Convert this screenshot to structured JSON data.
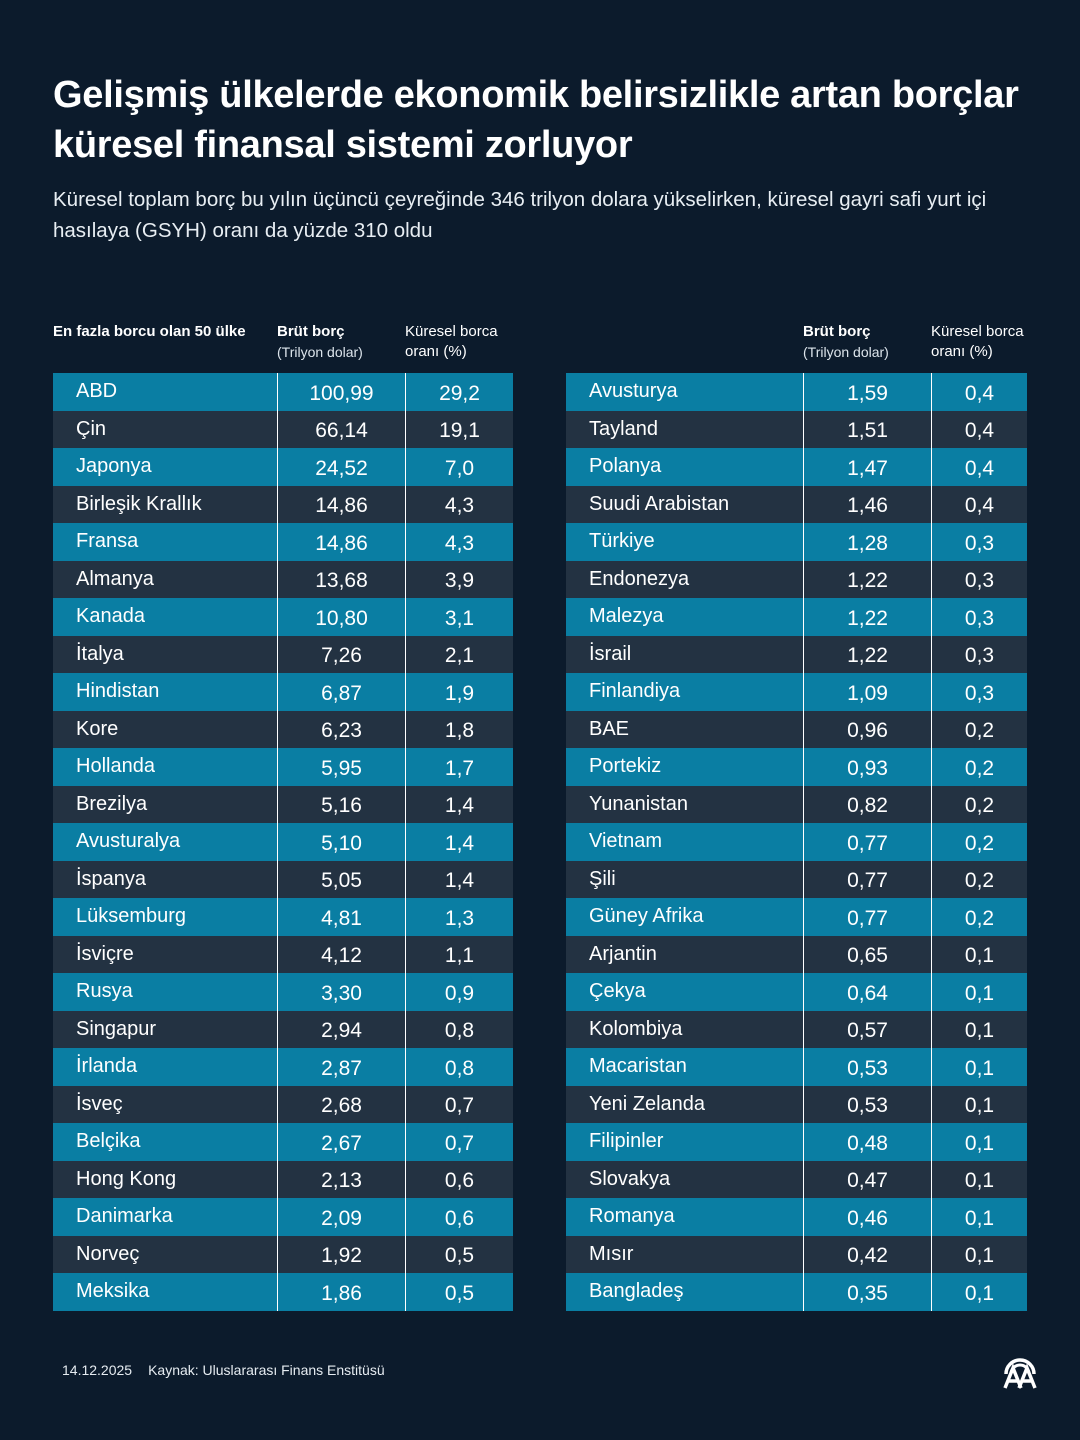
{
  "title": "Gelişmiş ülkelerde ekonomik belirsizlikle artan borçlar küresel finansal sistemi zorluyor",
  "subtitle": "Küresel toplam borç bu yılın üçüncü çeyreğinde 346 trilyon dolara yükselirken, küresel gayri safi yurt içi hasılaya (GSYH) oranı da yüzde 310 oldu",
  "headers": {
    "country": "En fazla borcu olan 50 ülke",
    "debt": "Brüt borç",
    "debt_unit": "(Trilyon dolar)",
    "share": "Küresel borca oranı (%)"
  },
  "colors": {
    "background": "#0c1b2c",
    "row_blue": "#0a7ea3",
    "row_dark": "#233242"
  },
  "chart_data": {
    "type": "table",
    "columns": [
      "Ülke",
      "Brüt borç (Trilyon dolar)",
      "Küresel borca oranı (%)"
    ],
    "rows": [
      [
        "ABD",
        "100,99",
        "29,2"
      ],
      [
        "Çin",
        "66,14",
        "19,1"
      ],
      [
        "Japonya",
        "24,52",
        "7,0"
      ],
      [
        "Birleşik Krallık",
        "14,86",
        "4,3"
      ],
      [
        "Fransa",
        "14,86",
        "4,3"
      ],
      [
        "Almanya",
        "13,68",
        "3,9"
      ],
      [
        "Kanada",
        "10,80",
        "3,1"
      ],
      [
        "İtalya",
        "7,26",
        "2,1"
      ],
      [
        "Hindistan",
        "6,87",
        "1,9"
      ],
      [
        "Kore",
        "6,23",
        "1,8"
      ],
      [
        "Hollanda",
        "5,95",
        "1,7"
      ],
      [
        "Brezilya",
        "5,16",
        "1,4"
      ],
      [
        "Avusturalya",
        "5,10",
        "1,4"
      ],
      [
        "İspanya",
        "5,05",
        "1,4"
      ],
      [
        "Lüksemburg",
        "4,81",
        "1,3"
      ],
      [
        "İsviçre",
        "4,12",
        "1,1"
      ],
      [
        "Rusya",
        "3,30",
        "0,9"
      ],
      [
        "Singapur",
        "2,94",
        "0,8"
      ],
      [
        "İrlanda",
        "2,87",
        "0,8"
      ],
      [
        "İsveç",
        "2,68",
        "0,7"
      ],
      [
        "Belçika",
        "2,67",
        "0,7"
      ],
      [
        "Hong Kong",
        "2,13",
        "0,6"
      ],
      [
        "Danimarka",
        "2,09",
        "0,6"
      ],
      [
        "Norveç",
        "1,92",
        "0,5"
      ],
      [
        "Meksika",
        "1,86",
        "0,5"
      ],
      [
        "Avusturya",
        "1,59",
        "0,4"
      ],
      [
        "Tayland",
        "1,51",
        "0,4"
      ],
      [
        "Polanya",
        "1,47",
        "0,4"
      ],
      [
        "Suudi Arabistan",
        "1,46",
        "0,4"
      ],
      [
        "Türkiye",
        "1,28",
        "0,3"
      ],
      [
        "Endonezya",
        "1,22",
        "0,3"
      ],
      [
        "Malezya",
        "1,22",
        "0,3"
      ],
      [
        "İsrail",
        "1,22",
        "0,3"
      ],
      [
        "Finlandiya",
        "1,09",
        "0,3"
      ],
      [
        "BAE",
        "0,96",
        "0,2"
      ],
      [
        "Portekiz",
        "0,93",
        "0,2"
      ],
      [
        "Yunanistan",
        "0,82",
        "0,2"
      ],
      [
        "Vietnam",
        "0,77",
        "0,2"
      ],
      [
        "Şili",
        "0,77",
        "0,2"
      ],
      [
        "Güney Afrika",
        "0,77",
        "0,2"
      ],
      [
        "Arjantin",
        "0,65",
        "0,1"
      ],
      [
        "Çekya",
        "0,64",
        "0,1"
      ],
      [
        "Kolombiya",
        "0,57",
        "0,1"
      ],
      [
        "Macaristan",
        "0,53",
        "0,1"
      ],
      [
        "Yeni Zelanda",
        "0,53",
        "0,1"
      ],
      [
        "Filipinler",
        "0,48",
        "0,1"
      ],
      [
        "Slovakya",
        "0,47",
        "0,1"
      ],
      [
        "Romanya",
        "0,46",
        "0,1"
      ],
      [
        "Mısır",
        "0,42",
        "0,1"
      ],
      [
        "Bangladeş",
        "0,35",
        "0,1"
      ]
    ]
  },
  "footer": {
    "date": "14.12.2025",
    "source": "Kaynak: Uluslararası Finans Enstitüsü",
    "logo": "AA"
  }
}
